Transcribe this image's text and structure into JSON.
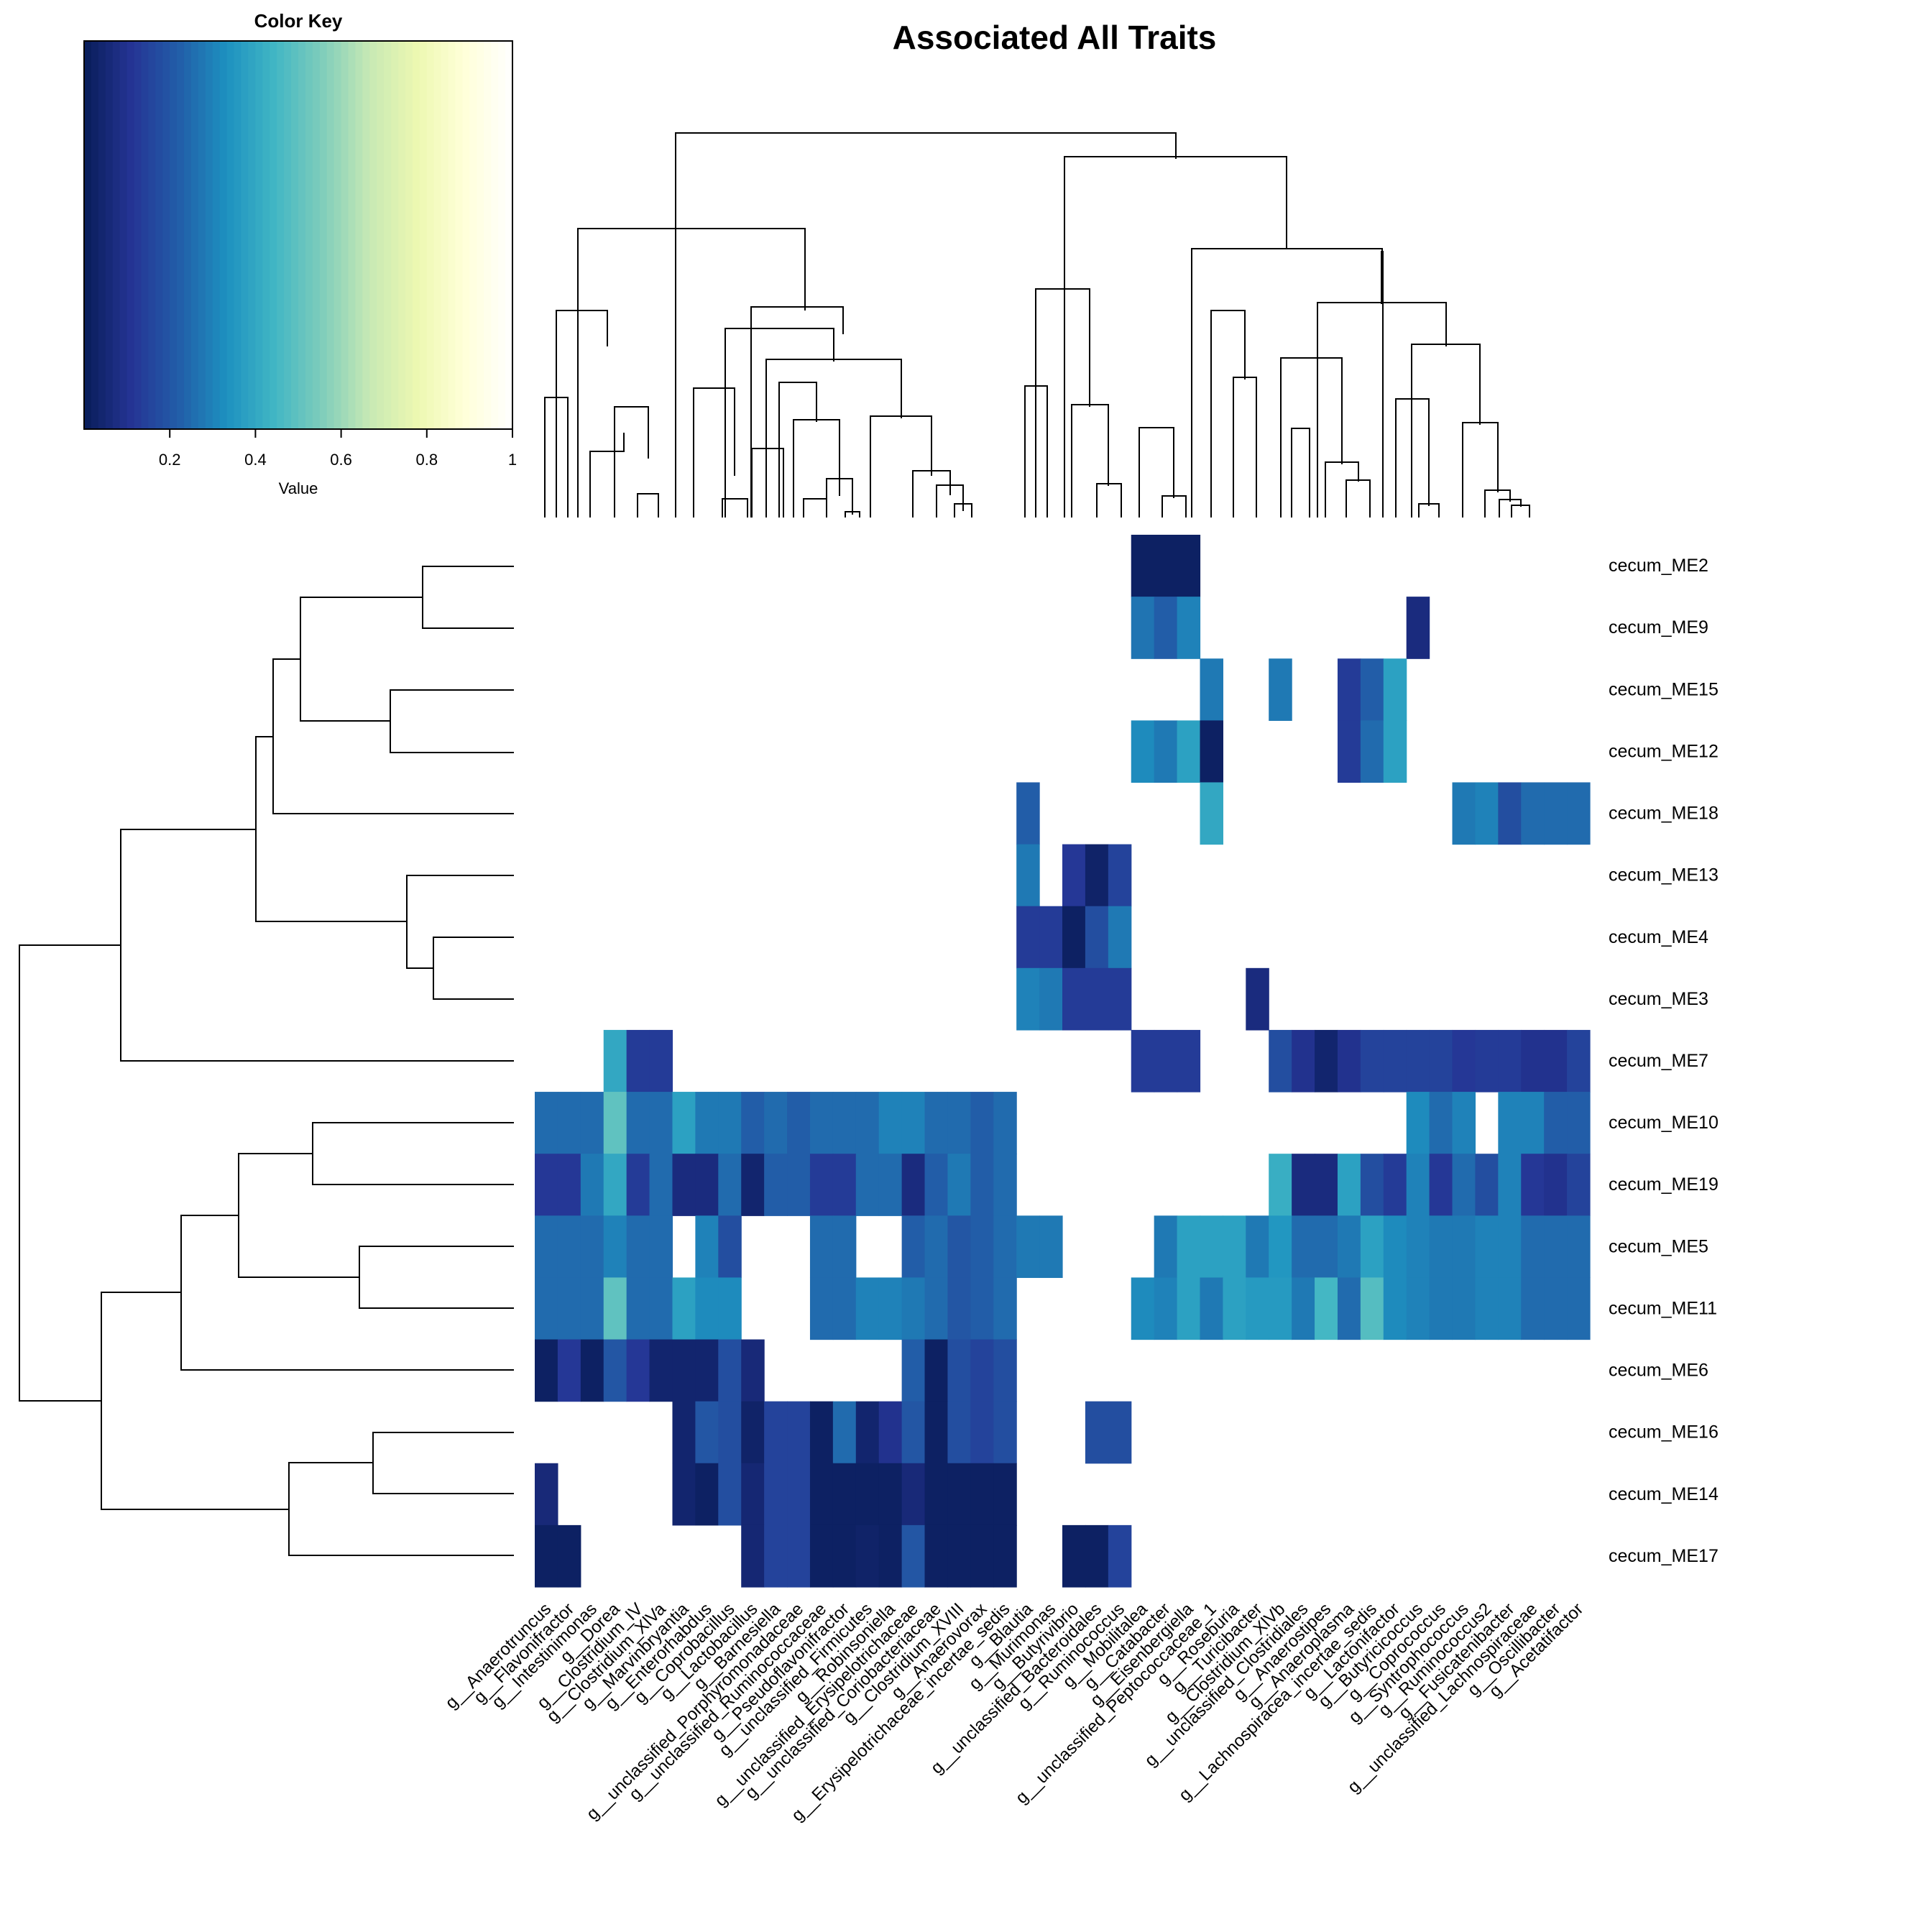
{
  "chart_data": {
    "type": "heatmap",
    "title": "Associated All Traits",
    "color_key": {
      "title": "Color Key",
      "xlabel": "Value",
      "ticks": [
        "0.2",
        "0.4",
        "0.6",
        "0.8",
        "1"
      ],
      "tick_values": [
        0.2,
        0.4,
        0.6,
        0.8,
        1.0
      ],
      "range": [
        0.0,
        1.0
      ],
      "palette": "YlGnBu (reversed)",
      "colors": [
        "#081d58",
        "#253494",
        "#225ea8",
        "#1d91c0",
        "#41b6c4",
        "#7fcdbb",
        "#c7e9b4",
        "#edf8b1",
        "#ffffd9",
        "#ffffff"
      ]
    },
    "rows": [
      "cecum_ME2",
      "cecum_ME9",
      "cecum_ME15",
      "cecum_ME12",
      "cecum_ME18",
      "cecum_ME13",
      "cecum_ME4",
      "cecum_ME3",
      "cecum_ME7",
      "cecum_ME10",
      "cecum_ME19",
      "cecum_ME5",
      "cecum_ME11",
      "cecum_ME6",
      "cecum_ME16",
      "cecum_ME14",
      "cecum_ME17"
    ],
    "columns": [
      "g__Anaerotruncus",
      "g__Flavonifractor",
      "g__Intestinimonas",
      "g__Dorea",
      "g__Clostridium_IV",
      "g__Clostridium_XlVa",
      "g__Marvinbryantia",
      "g__Enterorhabdus",
      "g__Coprobacillus",
      "g__Lactobacillus",
      "g__Barnesiella",
      "g__unclassified_Porphyromonadaceae",
      "g__unclassified_Ruminococcaceae",
      "g__Pseudoflavonifractor",
      "g__unclassified_Firmicutes",
      "g__Robinsoniella",
      "g__unclassified_Erysipelotrichaceae",
      "g__unclassified_Coriobacteriaceae",
      "g__Clostridium_XVIII",
      "g__Anaerovorax",
      "g__Erysipelotrichaceae_incertae_sedis",
      "g__Blautia",
      "g__Murimonas",
      "g__Butyrivibrio",
      "g__unclassified_Bacteroidales",
      "g__Ruminococcus",
      "g__Mobilitalea",
      "g__Catabacter",
      "g__Eisenbergiella",
      "g__unclassified_Peptococcaceae_1",
      "g__Roseburia",
      "g__Turicibacter",
      "g__Clostridium_XlVb",
      "g__unclassified_Clostridiales",
      "g__Anaerostipes",
      "g__Anaeroplasma",
      "g__Lachnospiracea_incertae_sedis",
      "g__Lactonifactor",
      "g__Butyricicoccus",
      "g__Coprococcus",
      "g__Syntrophococcus",
      "g__Ruminococcus2",
      "g__Fusicatenibacter",
      "g__unclassified_Lachnospiraceae",
      "g__Oscillibacter",
      "g__Acetatifactor"
    ],
    "values": [
      [
        null,
        null,
        null,
        null,
        null,
        null,
        null,
        null,
        null,
        null,
        null,
        null,
        null,
        null,
        null,
        null,
        null,
        null,
        null,
        null,
        null,
        null,
        null,
        null,
        null,
        null,
        0.02,
        0.02,
        0.02,
        null,
        null,
        null,
        null,
        null,
        null,
        null,
        null,
        null,
        null,
        null,
        null,
        null,
        null,
        null,
        null,
        null
      ],
      [
        null,
        null,
        null,
        null,
        null,
        null,
        null,
        null,
        null,
        null,
        null,
        null,
        null,
        null,
        null,
        null,
        null,
        null,
        null,
        null,
        null,
        null,
        null,
        null,
        null,
        null,
        0.27,
        0.22,
        0.3,
        null,
        null,
        null,
        null,
        null,
        null,
        null,
        null,
        null,
        0.07,
        null,
        null,
        null,
        null,
        null,
        null,
        null
      ],
      [
        null,
        null,
        null,
        null,
        null,
        null,
        null,
        null,
        null,
        null,
        null,
        null,
        null,
        null,
        null,
        null,
        null,
        null,
        null,
        null,
        null,
        null,
        null,
        null,
        null,
        null,
        null,
        null,
        null,
        0.28,
        null,
        null,
        0.28,
        null,
        null,
        0.13,
        0.22,
        0.38,
        null,
        null,
        null,
        null,
        null,
        null,
        null,
        null
      ],
      [
        null,
        null,
        null,
        null,
        null,
        null,
        null,
        null,
        null,
        null,
        null,
        null,
        null,
        null,
        null,
        null,
        null,
        null,
        null,
        null,
        null,
        null,
        null,
        null,
        null,
        null,
        0.32,
        0.28,
        0.38,
        0.02,
        null,
        null,
        null,
        null,
        null,
        0.13,
        0.25,
        0.38,
        null,
        null,
        null,
        null,
        null,
        null,
        null,
        null
      ],
      [
        null,
        null,
        null,
        null,
        null,
        null,
        null,
        null,
        null,
        null,
        null,
        null,
        null,
        null,
        null,
        null,
        null,
        null,
        null,
        null,
        null,
        0.22,
        null,
        null,
        null,
        null,
        null,
        null,
        null,
        0.4,
        null,
        null,
        null,
        null,
        null,
        null,
        null,
        null,
        null,
        null,
        0.28,
        0.3,
        0.18,
        0.25,
        0.25,
        0.25
      ],
      [
        null,
        null,
        null,
        null,
        null,
        null,
        null,
        null,
        null,
        null,
        null,
        null,
        null,
        null,
        null,
        null,
        null,
        null,
        null,
        null,
        null,
        0.28,
        null,
        0.12,
        0.03,
        0.15,
        null,
        null,
        null,
        null,
        null,
        null,
        null,
        null,
        null,
        null,
        null,
        null,
        null,
        null,
        null,
        null,
        null,
        null,
        null,
        null
      ],
      [
        null,
        null,
        null,
        null,
        null,
        null,
        null,
        null,
        null,
        null,
        null,
        null,
        null,
        null,
        null,
        null,
        null,
        null,
        null,
        null,
        null,
        0.13,
        0.13,
        0.02,
        0.18,
        0.28,
        null,
        null,
        null,
        null,
        null,
        null,
        null,
        null,
        null,
        null,
        null,
        null,
        null,
        null,
        null,
        null,
        null,
        null,
        null,
        null
      ],
      [
        null,
        null,
        null,
        null,
        null,
        null,
        null,
        null,
        null,
        null,
        null,
        null,
        null,
        null,
        null,
        null,
        null,
        null,
        null,
        null,
        null,
        0.3,
        0.28,
        0.13,
        0.13,
        0.13,
        null,
        null,
        null,
        null,
        null,
        0.07,
        null,
        null,
        null,
        null,
        null,
        null,
        null,
        null,
        null,
        null,
        null,
        null,
        null,
        null
      ],
      [
        null,
        null,
        null,
        0.4,
        0.13,
        0.13,
        null,
        null,
        null,
        null,
        null,
        null,
        null,
        null,
        null,
        null,
        null,
        null,
        null,
        null,
        null,
        null,
        null,
        null,
        null,
        null,
        0.13,
        0.13,
        0.13,
        null,
        null,
        null,
        0.18,
        0.1,
        0.04,
        0.1,
        0.15,
        0.15,
        0.15,
        0.15,
        0.12,
        0.13,
        0.13,
        0.1,
        0.1,
        0.15
      ],
      [
        0.25,
        0.25,
        0.25,
        0.5,
        0.25,
        0.25,
        0.38,
        0.28,
        0.28,
        0.22,
        0.25,
        0.22,
        0.25,
        0.25,
        0.25,
        0.3,
        0.3,
        0.25,
        0.25,
        0.22,
        0.25,
        null,
        null,
        null,
        null,
        null,
        null,
        null,
        null,
        null,
        null,
        null,
        null,
        null,
        null,
        null,
        null,
        null,
        0.32,
        0.25,
        0.3,
        null,
        0.3,
        0.3,
        0.22,
        0.22
      ],
      [
        0.12,
        0.12,
        0.28,
        0.4,
        0.13,
        0.25,
        0.07,
        0.07,
        0.25,
        0.04,
        0.22,
        0.22,
        0.13,
        0.13,
        0.25,
        0.25,
        0.07,
        0.22,
        0.28,
        0.22,
        0.25,
        null,
        null,
        null,
        null,
        null,
        null,
        null,
        null,
        null,
        null,
        null,
        0.42,
        0.07,
        0.07,
        0.38,
        0.18,
        0.13,
        0.3,
        0.12,
        0.25,
        0.18,
        0.3,
        0.12,
        0.1,
        0.15
      ],
      [
        0.25,
        0.25,
        0.25,
        0.3,
        0.25,
        0.25,
        null,
        0.3,
        0.18,
        null,
        null,
        null,
        0.25,
        0.25,
        null,
        null,
        0.22,
        0.25,
        0.2,
        0.22,
        0.25,
        0.28,
        0.28,
        null,
        null,
        null,
        null,
        0.28,
        0.38,
        0.38,
        0.38,
        0.28,
        0.35,
        0.25,
        0.25,
        0.28,
        0.38,
        0.32,
        0.3,
        0.28,
        0.28,
        0.3,
        0.3,
        0.25,
        0.25,
        0.25
      ],
      [
        0.25,
        0.25,
        0.25,
        0.5,
        0.25,
        0.25,
        0.38,
        0.32,
        0.32,
        null,
        null,
        null,
        0.25,
        0.25,
        0.3,
        0.3,
        0.28,
        0.25,
        0.2,
        0.22,
        0.25,
        null,
        null,
        null,
        null,
        null,
        0.32,
        0.3,
        0.38,
        0.28,
        0.38,
        0.36,
        0.36,
        0.28,
        0.45,
        0.25,
        0.48,
        0.32,
        0.3,
        0.28,
        0.28,
        0.3,
        0.3,
        0.25,
        0.25,
        0.25
      ],
      [
        0.02,
        0.12,
        0.02,
        0.2,
        0.12,
        0.04,
        0.04,
        0.04,
        0.18,
        0.06,
        null,
        null,
        null,
        null,
        null,
        null,
        0.22,
        0.02,
        0.18,
        0.15,
        0.18,
        null,
        null,
        null,
        null,
        null,
        null,
        null,
        null,
        null,
        null,
        null,
        null,
        null,
        null,
        null,
        null,
        null,
        null,
        null,
        null,
        null,
        null,
        null,
        null,
        null
      ],
      [
        null,
        null,
        null,
        null,
        null,
        null,
        0.04,
        0.2,
        0.18,
        0.03,
        0.15,
        0.15,
        0.02,
        0.25,
        0.04,
        0.1,
        0.2,
        0.02,
        0.18,
        0.15,
        0.18,
        null,
        null,
        null,
        0.18,
        0.18,
        null,
        null,
        null,
        null,
        null,
        null,
        null,
        null,
        null,
        null,
        null,
        null,
        null,
        null,
        null,
        null,
        null,
        null,
        null,
        null
      ],
      [
        0.06,
        null,
        null,
        null,
        null,
        null,
        0.04,
        0.02,
        0.18,
        0.05,
        0.15,
        0.15,
        0.02,
        0.02,
        0.02,
        0.02,
        0.06,
        0.02,
        0.02,
        0.02,
        0.02,
        null,
        null,
        null,
        null,
        null,
        null,
        null,
        null,
        null,
        null,
        null,
        null,
        null,
        null,
        null,
        null,
        null,
        null,
        null,
        null,
        null,
        null,
        null,
        null,
        null
      ],
      [
        0.02,
        0.02,
        null,
        null,
        null,
        null,
        null,
        null,
        null,
        0.05,
        0.15,
        0.15,
        0.02,
        0.02,
        0.03,
        0.02,
        0.2,
        0.02,
        0.02,
        0.02,
        0.02,
        null,
        null,
        0.02,
        0.02,
        0.15,
        null,
        null,
        null,
        null,
        null,
        null,
        null,
        null,
        null,
        null,
        null,
        null,
        null,
        null,
        null,
        null,
        null,
        null,
        null,
        null
      ]
    ]
  }
}
